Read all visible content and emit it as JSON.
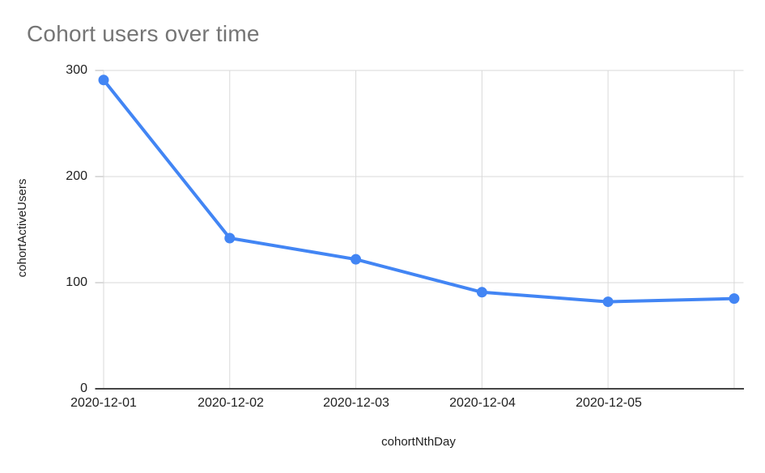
{
  "chart_data": {
    "type": "line",
    "title": "Cohort users over time",
    "xlabel": "cohortNthDay",
    "ylabel": "cohortActiveUsers",
    "x_tick_labels": [
      "2020-12-01",
      "2020-12-02",
      "2020-12-03",
      "2020-12-04",
      "2020-12-05",
      ""
    ],
    "y_ticks": [
      300,
      200,
      100,
      0
    ],
    "y_tick_labels": [
      "300",
      "200",
      "100",
      "0"
    ],
    "ylim": [
      0,
      300
    ],
    "grid": true,
    "legend": "none",
    "series": [
      {
        "name": "cohortActiveUsers",
        "values": [
          291,
          142,
          122,
          91,
          82,
          85
        ]
      }
    ],
    "colors": {
      "series": "#4285f4",
      "gridline": "#d9d9d9",
      "tick": "#b7b7b7",
      "axis_baseline": "#454545",
      "title": "#757575",
      "label": "#1f1f1f"
    }
  }
}
